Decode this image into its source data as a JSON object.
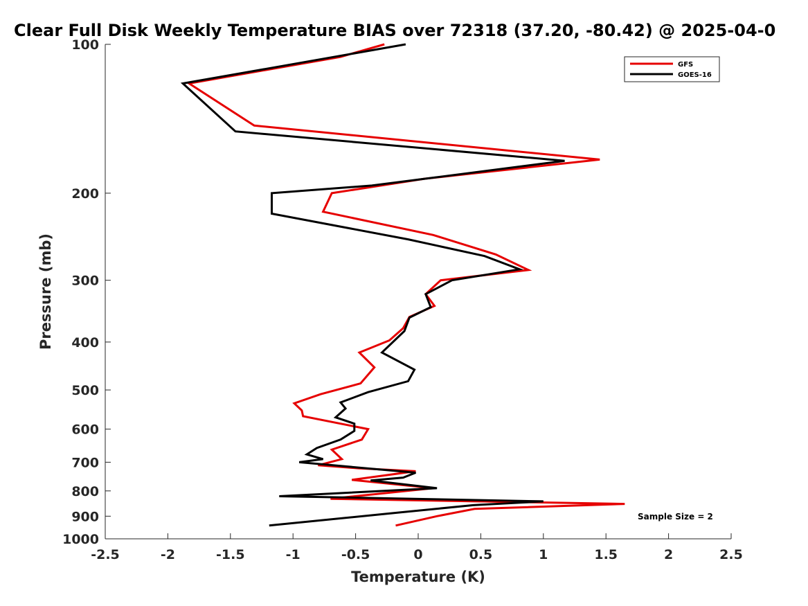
{
  "chart_data": {
    "type": "line",
    "title": "Clear Full Disk Weekly Temperature BIAS over 72318 (37.20, -80.42) @ 2025-04-0",
    "xlabel": "Temperature (K)",
    "ylabel": "Pressure (mb)",
    "xlim": [
      -2.5,
      2.5
    ],
    "ylim": [
      1000,
      100
    ],
    "y_scale": "log",
    "y_reversed": true,
    "x_ticks": [
      "-2.5",
      "-2",
      "-1.5",
      "-1",
      "-0.5",
      "0",
      "0.5",
      "1",
      "1.5",
      "2",
      "2.5"
    ],
    "y_ticks": [
      "100",
      "200",
      "300",
      "400",
      "500",
      "600",
      "700",
      "800",
      "900",
      "1000"
    ],
    "grid": false,
    "legend_position": "top-right",
    "annotation": "Sample Size = 2",
    "series": [
      {
        "name": "GFS",
        "color": "#e60000",
        "points": [
          [
            -0.27,
            100
          ],
          [
            -0.62,
            106
          ],
          [
            -1.83,
            120
          ],
          [
            -1.31,
            146
          ],
          [
            1.45,
            171
          ],
          [
            0.05,
            187
          ],
          [
            -0.69,
            200
          ],
          [
            -0.76,
            218
          ],
          [
            0.12,
            243
          ],
          [
            0.62,
            266
          ],
          [
            0.88,
            286
          ],
          [
            0.18,
            300
          ],
          [
            0.06,
            320
          ],
          [
            0.13,
            338
          ],
          [
            -0.07,
            356
          ],
          [
            -0.12,
            375
          ],
          [
            -0.23,
            397
          ],
          [
            -0.47,
            420
          ],
          [
            -0.35,
            450
          ],
          [
            -0.46,
            485
          ],
          [
            -0.78,
            510
          ],
          [
            -0.99,
            532
          ],
          [
            -0.93,
            550
          ],
          [
            -0.92,
            565
          ],
          [
            -0.4,
            600
          ],
          [
            -0.45,
            630
          ],
          [
            -0.69,
            660
          ],
          [
            -0.61,
            690
          ],
          [
            -0.8,
            710
          ],
          [
            -0.48,
            720
          ],
          [
            -0.02,
            730
          ],
          [
            -0.53,
            760
          ],
          [
            0.12,
            790
          ],
          [
            -0.7,
            830
          ],
          [
            1.65,
            850
          ],
          [
            0.45,
            870
          ],
          [
            0.15,
            900
          ],
          [
            -0.18,
            940
          ]
        ]
      },
      {
        "name": "GOES-16",
        "color": "#000000",
        "points": [
          [
            -0.1,
            100
          ],
          [
            -1.88,
            120
          ],
          [
            -1.46,
            150
          ],
          [
            1.17,
            172
          ],
          [
            -0.37,
            193
          ],
          [
            -1.17,
            200
          ],
          [
            -1.17,
            220
          ],
          [
            -0.08,
            248
          ],
          [
            0.53,
            268
          ],
          [
            0.81,
            285
          ],
          [
            0.27,
            300
          ],
          [
            0.06,
            320
          ],
          [
            0.1,
            340
          ],
          [
            -0.07,
            357
          ],
          [
            -0.11,
            380
          ],
          [
            -0.29,
            420
          ],
          [
            -0.03,
            455
          ],
          [
            -0.08,
            480
          ],
          [
            -0.4,
            505
          ],
          [
            -0.62,
            530
          ],
          [
            -0.58,
            545
          ],
          [
            -0.66,
            568
          ],
          [
            -0.51,
            585
          ],
          [
            -0.51,
            605
          ],
          [
            -0.62,
            630
          ],
          [
            -0.81,
            655
          ],
          [
            -0.89,
            675
          ],
          [
            -0.76,
            690
          ],
          [
            -0.95,
            700
          ],
          [
            -0.02,
            735
          ],
          [
            -0.12,
            752
          ],
          [
            -0.38,
            762
          ],
          [
            0.15,
            790
          ],
          [
            -1.11,
            820
          ],
          [
            1.0,
            840
          ],
          [
            0.44,
            855
          ],
          [
            -0.16,
            885
          ],
          [
            -1.19,
            940
          ]
        ]
      }
    ]
  }
}
